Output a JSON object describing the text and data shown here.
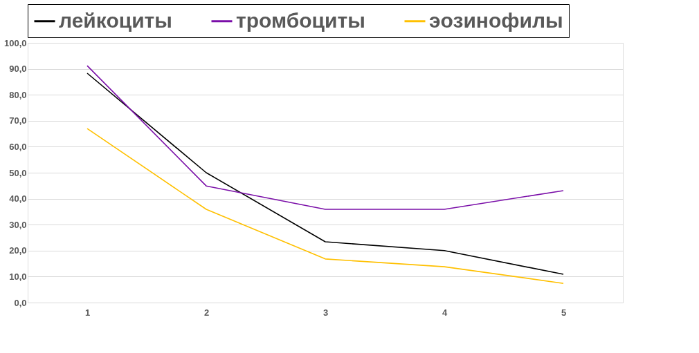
{
  "chart_data": {
    "type": "line",
    "categories": [
      "1",
      "2",
      "3",
      "4",
      "5"
    ],
    "series": [
      {
        "name": "лейкоциты",
        "color": "#000000",
        "values": [
          88.3,
          50.0,
          23.4,
          20.0,
          10.9
        ]
      },
      {
        "name": "тромбоциты",
        "color": "#7a0ea8",
        "values": [
          91.2,
          44.9,
          35.9,
          35.9,
          43.1
        ]
      },
      {
        "name": "эозинофилы",
        "color": "#ffc000",
        "values": [
          67.0,
          35.9,
          16.8,
          13.8,
          7.4
        ]
      }
    ],
    "ylim": [
      0,
      100
    ],
    "yticks": [
      {
        "value": 0,
        "label": "0,0"
      },
      {
        "value": 10,
        "label": "10,0"
      },
      {
        "value": 20,
        "label": "20,0"
      },
      {
        "value": 30,
        "label": "30,0"
      },
      {
        "value": 40,
        "label": "40,0"
      },
      {
        "value": 50,
        "label": "50,0"
      },
      {
        "value": 60,
        "label": "60,0"
      },
      {
        "value": 70,
        "label": "70,0"
      },
      {
        "value": 80,
        "label": "80,0"
      },
      {
        "value": 90,
        "label": "90,0"
      },
      {
        "value": 100,
        "label": "100,0"
      }
    ],
    "grid": "y",
    "legend": "top",
    "marker": "none",
    "line_style": "solid"
  }
}
